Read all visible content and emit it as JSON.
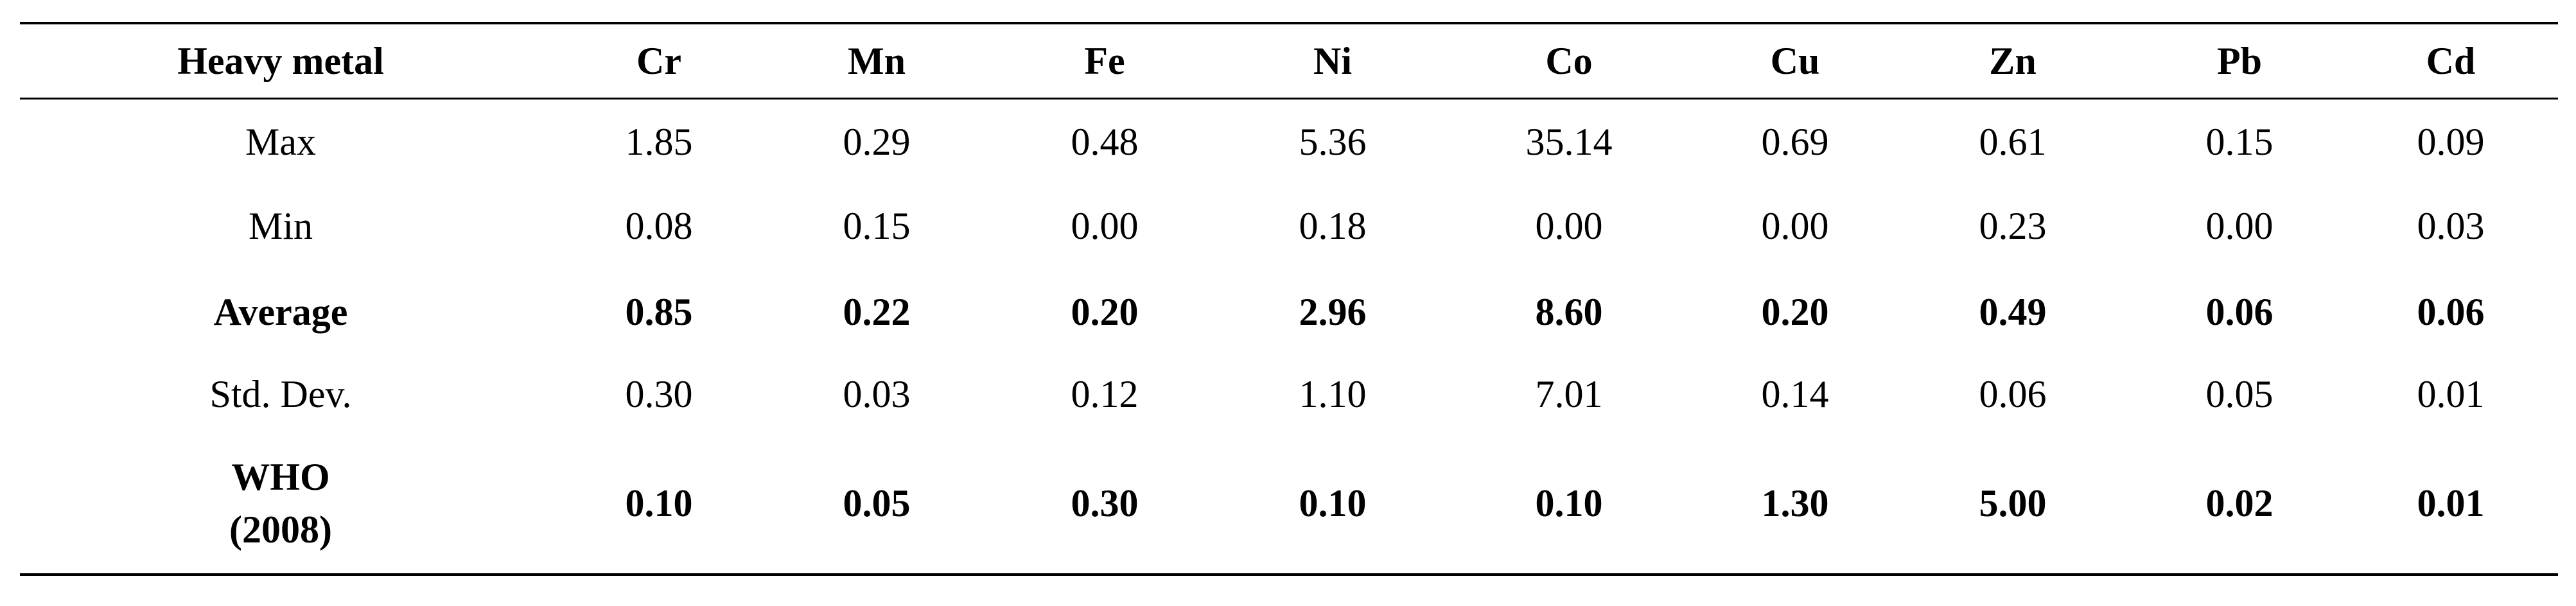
{
  "table": {
    "header": [
      "Heavy metal",
      "Cr",
      "Mn",
      "Fe",
      "Ni",
      "Co",
      "Cu",
      "Zn",
      "Pb",
      "Cd"
    ],
    "rows": [
      [
        "Max",
        "1.85",
        "0.29",
        "0.48",
        "5.36",
        "35.14",
        "0.69",
        "0.61",
        "0.15",
        "0.09"
      ],
      [
        "Min",
        "0.08",
        "0.15",
        "0.00",
        "0.18",
        "0.00",
        "0.00",
        "0.23",
        "0.00",
        "0.03"
      ],
      [
        "Average",
        "0.85",
        "0.22",
        "0.20",
        "2.96",
        "8.60",
        "0.20",
        "0.49",
        "0.06",
        "0.06"
      ],
      [
        "Std. Dev.",
        "0.30",
        "0.03",
        "0.12",
        "1.10",
        "7.01",
        "0.14",
        "0.06",
        "0.05",
        "0.01"
      ],
      [
        "WHO\n(2008)",
        "0.10",
        "0.05",
        "0.30",
        "0.10",
        "0.10",
        "1.30",
        "5.00",
        "0.02",
        "0.01"
      ]
    ]
  }
}
